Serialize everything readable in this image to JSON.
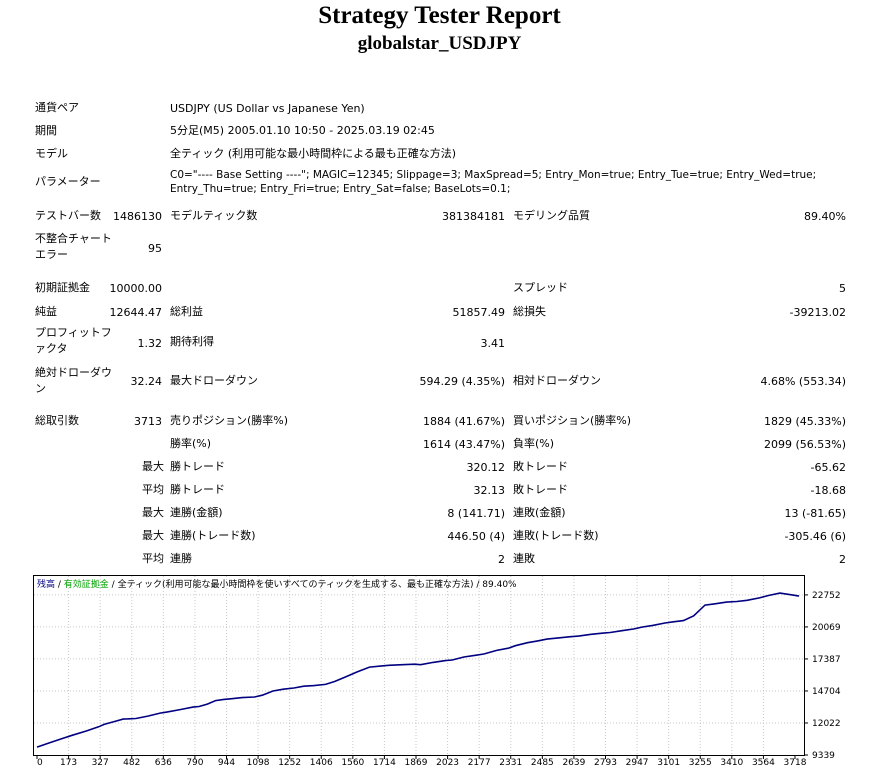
{
  "header": {
    "title": "Strategy Tester Report",
    "subtitle": "globalstar_USDJPY"
  },
  "info": {
    "symbol_label": "通貨ペア",
    "symbol_value": "USDJPY (US Dollar vs Japanese Yen)",
    "period_label": "期間",
    "period_value": "5分足(M5) 2005.01.10 10:50 - 2025.03.19 02:45",
    "model_label": "モデル",
    "model_value": "全ティック (利用可能な最小時間枠による最も正確な方法)",
    "params_label": "パラメーター",
    "params_value": "C0=\"---- Base Setting ----\"; MAGIC=12345; Slippage=3; MaxSpread=5; Entry_Mon=true; Entry_Tue=true; Entry_Wed=true; Entry_Thu=true; Entry_Fri=true; Entry_Sat=false; BaseLots=0.1;"
  },
  "stats": {
    "bars_label": "テストバー数",
    "bars_value": "1486130",
    "ticks_label": "モデルティック数",
    "ticks_value": "381384181",
    "quality_label": "モデリング品質",
    "quality_value": "89.40%",
    "mismatch_label": "不整合チャートエラー",
    "mismatch_value": "95",
    "deposit_label": "初期証拠金",
    "deposit_value": "10000.00",
    "spread_label": "スプレッド",
    "spread_value": "5",
    "net_label": "純益",
    "net_value": "12644.47",
    "gross_profit_label": "総利益",
    "gross_profit_value": "51857.49",
    "gross_loss_label": "総損失",
    "gross_loss_value": "-39213.02",
    "pf_label": "プロフィットファクタ",
    "pf_value": "1.32",
    "expected_label": "期待利得",
    "expected_value": "3.41",
    "abs_dd_label": "絶対ドローダウン",
    "abs_dd_value": "32.24",
    "max_dd_label": "最大ドローダウン",
    "max_dd_value": "594.29 (4.35%)",
    "rel_dd_label": "相対ドローダウン",
    "rel_dd_value": "4.68% (553.34)",
    "trades_label": "総取引数",
    "trades_value": "3713",
    "short_label": "売りポジション(勝率%)",
    "short_value": "1884 (41.67%)",
    "long_label": "買いポジション(勝率%)",
    "long_value": "1829 (45.33%)",
    "win_label": "勝率(%)",
    "win_value": "1614 (43.47%)",
    "loss_label": "負率(%)",
    "loss_value": "2099 (56.53%)",
    "max_word": "最大",
    "avg_word": "平均",
    "largest_win_label": "勝トレード",
    "largest_win_value": "320.12",
    "largest_loss_label": "敗トレード",
    "largest_loss_value": "-65.62",
    "avg_win_label": "勝トレード",
    "avg_win_value": "32.13",
    "avg_loss_label": "敗トレード",
    "avg_loss_value": "-18.68",
    "cons_wins_money_label": "連勝(金額)",
    "cons_wins_money_value": "8 (141.71)",
    "cons_losses_money_label": "連敗(金額)",
    "cons_losses_money_value": "13 (-81.65)",
    "cons_profit_label": "連勝(トレード数)",
    "cons_profit_value": "446.50 (4)",
    "cons_loss_label": "連敗(トレード数)",
    "cons_loss_value": "-305.46 (6)",
    "avg_cons_wins_label": "連勝",
    "avg_cons_wins_value": "2",
    "avg_cons_losses_label": "連敗",
    "avg_cons_losses_value": "2"
  },
  "chart_legend": {
    "balance": "残高",
    "sep1": " / ",
    "equity": "有効証拠金",
    "sep2": " / ",
    "model": "全ティック(利用可能な最小時間枠を使いすべてのティックを生成する、最も正確な方法)",
    "sep3": " / ",
    "quality": "89.40%",
    "balance_color": "#000080",
    "equity_color": "#00a000"
  },
  "chart_data": {
    "type": "line",
    "xlabel": "",
    "ylabel": "",
    "xlim": [
      0,
      3713
    ],
    "ylim": [
      9339,
      24000
    ],
    "x_ticks": [
      0,
      173,
      327,
      482,
      636,
      790,
      944,
      1098,
      1252,
      1406,
      1560,
      1714,
      1869,
      2023,
      2177,
      2331,
      2485,
      2639,
      2793,
      2947,
      3101,
      3255,
      3410,
      3564,
      3718
    ],
    "y_ticks": [
      9339,
      12022,
      14704,
      17387,
      20069,
      22752
    ],
    "series": [
      {
        "name": "残高",
        "color": "#000080",
        "x": [
          0,
          60,
          120,
          173,
          240,
          300,
          327,
          380,
          420,
          482,
          540,
          600,
          636,
          700,
          760,
          790,
          830,
          870,
          910,
          944,
          1000,
          1060,
          1098,
          1150,
          1200,
          1252,
          1300,
          1350,
          1406,
          1450,
          1500,
          1560,
          1620,
          1680,
          1714,
          1780,
          1840,
          1869,
          1930,
          1990,
          2023,
          2080,
          2140,
          2177,
          2240,
          2300,
          2331,
          2390,
          2440,
          2485,
          2540,
          2600,
          2639,
          2700,
          2760,
          2793,
          2850,
          2910,
          2947,
          3000,
          3060,
          3101,
          3150,
          3200,
          3255,
          3300,
          3360,
          3410,
          3460,
          3520,
          3564,
          3620,
          3680,
          3713
        ],
        "y": [
          10000,
          10350,
          10700,
          11000,
          11350,
          11700,
          11900,
          12150,
          12350,
          12400,
          12600,
          12850,
          12950,
          13150,
          13350,
          13400,
          13600,
          13900,
          14000,
          14050,
          14150,
          14200,
          14350,
          14700,
          14850,
          14950,
          15100,
          15150,
          15250,
          15500,
          15850,
          16300,
          16700,
          16800,
          16850,
          16900,
          16950,
          16900,
          17100,
          17250,
          17300,
          17550,
          17700,
          17800,
          18100,
          18300,
          18500,
          18750,
          18900,
          19050,
          19150,
          19250,
          19300,
          19450,
          19550,
          19600,
          19750,
          19900,
          20050,
          20200,
          20400,
          20500,
          20600,
          21000,
          21900,
          22000,
          22150,
          22200,
          22300,
          22500,
          22700,
          22900,
          22750,
          22650
        ]
      }
    ]
  }
}
